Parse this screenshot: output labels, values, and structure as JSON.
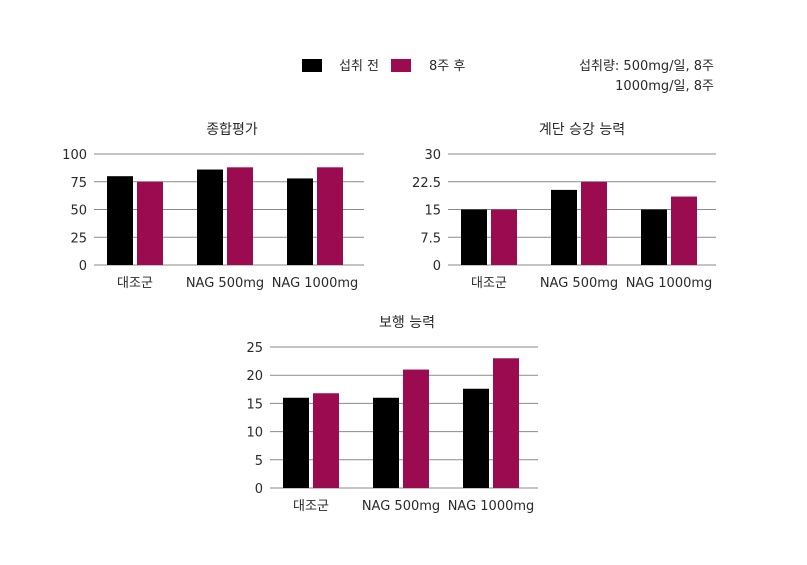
{
  "legend": {
    "items": [
      {
        "label": "섭취 전",
        "color": "#000000"
      },
      {
        "label": "8주 후",
        "color": "#9b0b4f"
      }
    ]
  },
  "note": {
    "line1": "섭취량: 500mg/일, 8주",
    "line2": "1000mg/일, 8주"
  },
  "chart_data": [
    {
      "type": "bar",
      "title": "종합평가",
      "categories": [
        "대조군",
        "NAG 500mg",
        "NAG 1000mg"
      ],
      "yticks": [
        "0",
        "25",
        "50",
        "75",
        "100"
      ],
      "ylim": [
        0,
        100
      ],
      "series": [
        {
          "name": "섭취 전",
          "color": "#000000",
          "values": [
            80,
            86,
            78
          ]
        },
        {
          "name": "8주 후",
          "color": "#9b0b4f",
          "values": [
            75,
            88,
            88
          ]
        }
      ]
    },
    {
      "type": "bar",
      "title": "계단 승강 능력",
      "categories": [
        "대조군",
        "NAG 500mg",
        "NAG 1000mg"
      ],
      "yticks": [
        "0",
        "7.5",
        "15",
        "22.5",
        "30"
      ],
      "ylim": [
        0,
        30
      ],
      "series": [
        {
          "name": "섭취 전",
          "color": "#000000",
          "values": [
            15,
            20.3,
            15
          ]
        },
        {
          "name": "8주 후",
          "color": "#9b0b4f",
          "values": [
            15,
            22.5,
            18.5
          ]
        }
      ]
    },
    {
      "type": "bar",
      "title": "보행 능력",
      "categories": [
        "대조군",
        "NAG 500mg",
        "NAG 1000mg"
      ],
      "yticks": [
        "0",
        "5",
        "10",
        "15",
        "20",
        "25"
      ],
      "ylim": [
        0,
        25
      ],
      "series": [
        {
          "name": "섭취 전",
          "color": "#000000",
          "values": [
            16,
            16,
            17.6
          ]
        },
        {
          "name": "8주 후",
          "color": "#9b0b4f",
          "values": [
            16.8,
            21,
            23
          ]
        }
      ]
    }
  ]
}
